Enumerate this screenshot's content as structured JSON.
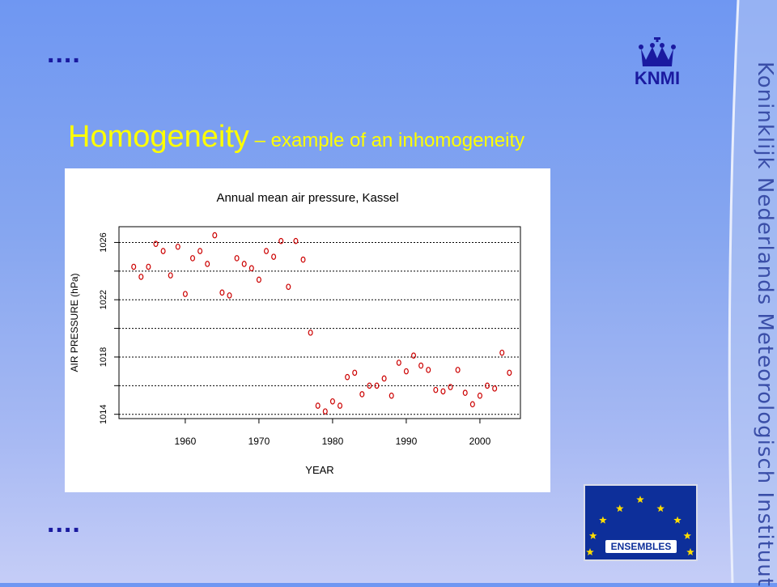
{
  "slide": {
    "title_main": "Homogeneity",
    "title_sub": " – example of an inhomogeneity",
    "bullet_dots_top": "....",
    "bullet_dots_bottom": "....",
    "org_name_vertical": "Koninklijk Nederlands Meteorologisch Instituut",
    "knmi_logo_text": "KNMI",
    "ensembles_logo_text": "ENSEMBLES",
    "colors": {
      "title": "#ffff00",
      "dots": "#1a1aa0",
      "points": "#cc0000",
      "ensembles_bg": "#0d2f9a",
      "stars": "#ffdd00"
    }
  },
  "chart_data": {
    "type": "scatter",
    "title": "Annual mean air pressure, Kassel",
    "xlabel": "YEAR",
    "ylabel": "AIR PRESSURE (hPa)",
    "xlim": [
      1951,
      2005.5
    ],
    "ylim": [
      1013.7,
      1027.1
    ],
    "xticks": [
      1960,
      1970,
      1980,
      1990,
      2000
    ],
    "yticks": [
      1014,
      1018,
      1022,
      1026
    ],
    "grid_lines_y": [
      1014,
      1016,
      1018,
      1020,
      1022,
      1024,
      1026
    ],
    "marker": "o",
    "x": [
      1953,
      1954,
      1955,
      1956,
      1957,
      1958,
      1959,
      1960,
      1961,
      1962,
      1963,
      1964,
      1965,
      1966,
      1967,
      1968,
      1969,
      1970,
      1971,
      1972,
      1973,
      1974,
      1975,
      1976,
      1977,
      1978,
      1979,
      1980,
      1981,
      1982,
      1983,
      1984,
      1985,
      1986,
      1987,
      1988,
      1989,
      1990,
      1991,
      1992,
      1993,
      1994,
      1995,
      1996,
      1997,
      1998,
      1999,
      2000,
      2001,
      2002,
      2003,
      2004
    ],
    "y": [
      1024.3,
      1023.6,
      1024.3,
      1025.9,
      1025.4,
      1023.7,
      1025.7,
      1022.4,
      1024.9,
      1025.4,
      1024.5,
      1026.5,
      1022.5,
      1022.3,
      1024.9,
      1024.5,
      1024.2,
      1023.4,
      1025.4,
      1025.0,
      1026.1,
      1022.9,
      1026.1,
      1024.8,
      1019.7,
      1014.6,
      1014.2,
      1014.9,
      1014.6,
      1016.6,
      1016.9,
      1015.4,
      1016.0,
      1016.0,
      1016.5,
      1015.3,
      1017.6,
      1017.0,
      1018.1,
      1017.4,
      1017.1,
      1015.7,
      1015.6,
      1015.9,
      1017.1,
      1015.5,
      1014.7,
      1015.3,
      1016.0,
      1015.8,
      1018.3,
      1016.9
    ]
  }
}
